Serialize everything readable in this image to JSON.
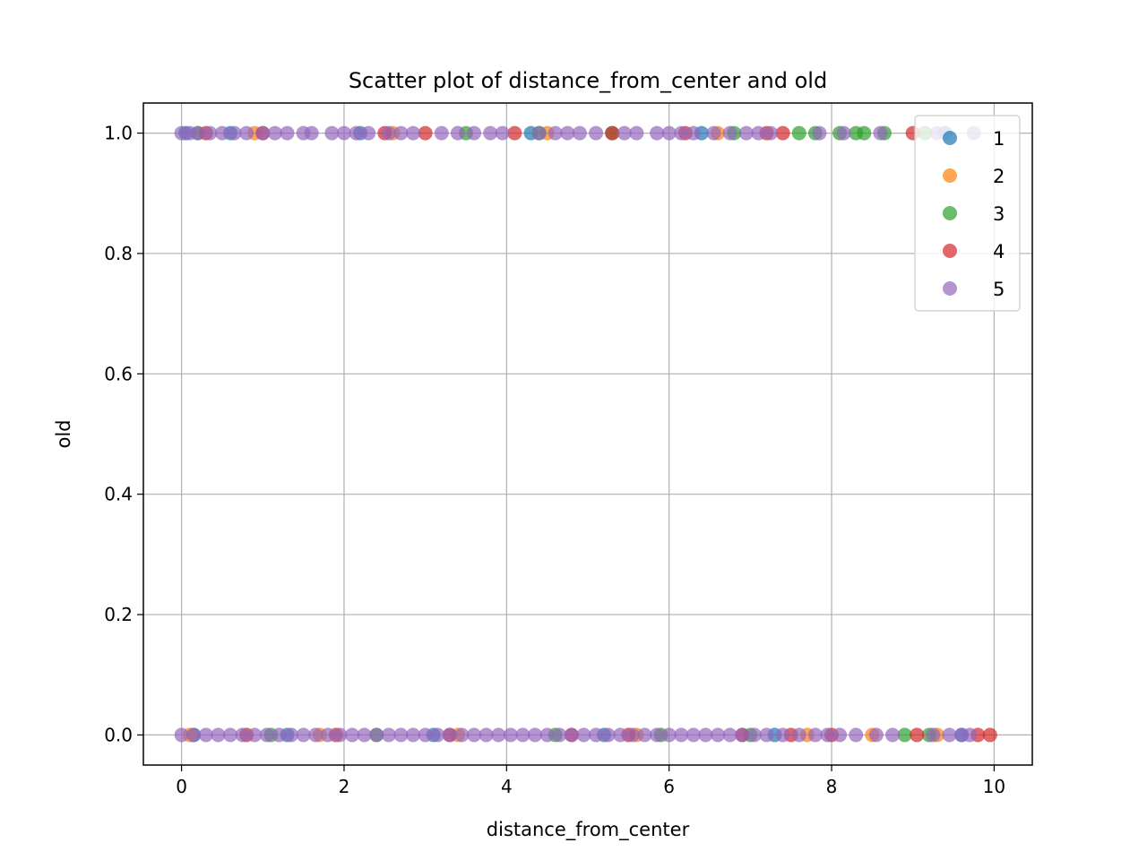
{
  "chart_data": {
    "type": "scatter",
    "title": "Scatter plot of distance_from_center and old",
    "xlabel": "distance_from_center",
    "ylabel": "old",
    "xlim": [
      -0.47,
      10.47
    ],
    "ylim": [
      -0.05,
      1.05
    ],
    "xticks": [
      0,
      2,
      4,
      6,
      8,
      10
    ],
    "xtick_labels": [
      "0",
      "2",
      "4",
      "6",
      "8",
      "10"
    ],
    "yticks": [
      0.0,
      0.2,
      0.4,
      0.6,
      0.8,
      1.0
    ],
    "ytick_labels": [
      "0.0",
      "0.2",
      "0.4",
      "0.6",
      "0.8",
      "1.0"
    ],
    "grid": true,
    "legend_position": "top-right",
    "marker_alpha": 0.7,
    "series": [
      {
        "name": "1",
        "color": "#1f77b4",
        "points": [
          [
            0.05,
            1
          ],
          [
            0.15,
            0
          ],
          [
            0.6,
            1
          ],
          [
            1.3,
            0
          ],
          [
            2.2,
            1
          ],
          [
            3.1,
            0
          ],
          [
            4.3,
            1
          ],
          [
            5.2,
            0
          ],
          [
            6.4,
            1
          ],
          [
            7.3,
            0
          ],
          [
            9.4,
            1
          ],
          [
            9.6,
            0
          ]
        ]
      },
      {
        "name": "2",
        "color": "#ff7f0e",
        "points": [
          [
            0.1,
            0
          ],
          [
            0.9,
            1
          ],
          [
            1.7,
            0
          ],
          [
            2.6,
            1
          ],
          [
            3.4,
            0
          ],
          [
            4.5,
            1
          ],
          [
            5.6,
            0
          ],
          [
            6.6,
            1
          ],
          [
            7.7,
            0
          ],
          [
            8.5,
            0
          ],
          [
            9.3,
            0
          ]
        ]
      },
      {
        "name": "3",
        "color": "#2ca02c",
        "points": [
          [
            0.2,
            1
          ],
          [
            1.1,
            0
          ],
          [
            2.4,
            0
          ],
          [
            3.5,
            1
          ],
          [
            4.4,
            1
          ],
          [
            4.6,
            0
          ],
          [
            5.3,
            1
          ],
          [
            5.9,
            0
          ],
          [
            6.8,
            1
          ],
          [
            7.0,
            0
          ],
          [
            7.6,
            1
          ],
          [
            7.8,
            1
          ],
          [
            8.1,
            1
          ],
          [
            8.3,
            1
          ],
          [
            8.4,
            1
          ],
          [
            8.65,
            1
          ],
          [
            8.9,
            0
          ],
          [
            9.15,
            1
          ],
          [
            9.2,
            0
          ]
        ]
      },
      {
        "name": "4",
        "color": "#d62728",
        "points": [
          [
            0.3,
            1
          ],
          [
            0.8,
            0
          ],
          [
            1.0,
            1
          ],
          [
            1.9,
            0
          ],
          [
            2.5,
            1
          ],
          [
            3.0,
            1
          ],
          [
            3.3,
            0
          ],
          [
            4.1,
            1
          ],
          [
            4.8,
            0
          ],
          [
            5.3,
            1
          ],
          [
            5.5,
            0
          ],
          [
            6.2,
            1
          ],
          [
            6.9,
            0
          ],
          [
            7.2,
            1
          ],
          [
            7.4,
            1
          ],
          [
            7.5,
            0
          ],
          [
            8.0,
            0
          ],
          [
            9.0,
            1
          ],
          [
            9.05,
            0
          ],
          [
            9.8,
            0
          ],
          [
            9.95,
            0
          ]
        ]
      },
      {
        "name": "5",
        "color": "#9467bd",
        "points": [
          [
            0.0,
            1
          ],
          [
            0.1,
            1
          ],
          [
            0.2,
            1
          ],
          [
            0.35,
            1
          ],
          [
            0.5,
            1
          ],
          [
            0.65,
            1
          ],
          [
            0.8,
            1
          ],
          [
            1.0,
            1
          ],
          [
            1.15,
            1
          ],
          [
            1.3,
            1
          ],
          [
            1.5,
            1
          ],
          [
            1.6,
            1
          ],
          [
            1.85,
            1
          ],
          [
            2.0,
            1
          ],
          [
            2.15,
            1
          ],
          [
            2.3,
            1
          ],
          [
            2.55,
            1
          ],
          [
            2.7,
            1
          ],
          [
            2.85,
            1
          ],
          [
            3.2,
            1
          ],
          [
            3.4,
            1
          ],
          [
            3.6,
            1
          ],
          [
            3.8,
            1
          ],
          [
            3.95,
            1
          ],
          [
            4.4,
            1
          ],
          [
            4.6,
            1
          ],
          [
            4.75,
            1
          ],
          [
            4.9,
            1
          ],
          [
            5.1,
            1
          ],
          [
            5.45,
            1
          ],
          [
            5.6,
            1
          ],
          [
            5.85,
            1
          ],
          [
            6.0,
            1
          ],
          [
            6.15,
            1
          ],
          [
            6.3,
            1
          ],
          [
            6.55,
            1
          ],
          [
            6.75,
            1
          ],
          [
            6.95,
            1
          ],
          [
            7.1,
            1
          ],
          [
            7.25,
            1
          ],
          [
            7.85,
            1
          ],
          [
            8.15,
            1
          ],
          [
            8.6,
            1
          ],
          [
            9.3,
            1
          ],
          [
            9.75,
            1
          ],
          [
            0.0,
            0
          ],
          [
            0.15,
            0
          ],
          [
            0.3,
            0
          ],
          [
            0.45,
            0
          ],
          [
            0.6,
            0
          ],
          [
            0.75,
            0
          ],
          [
            0.9,
            0
          ],
          [
            1.05,
            0
          ],
          [
            1.2,
            0
          ],
          [
            1.35,
            0
          ],
          [
            1.5,
            0
          ],
          [
            1.65,
            0
          ],
          [
            1.8,
            0
          ],
          [
            1.95,
            0
          ],
          [
            2.1,
            0
          ],
          [
            2.25,
            0
          ],
          [
            2.4,
            0
          ],
          [
            2.55,
            0
          ],
          [
            2.7,
            0
          ],
          [
            2.85,
            0
          ],
          [
            3.0,
            0
          ],
          [
            3.15,
            0
          ],
          [
            3.3,
            0
          ],
          [
            3.45,
            0
          ],
          [
            3.6,
            0
          ],
          [
            3.75,
            0
          ],
          [
            3.9,
            0
          ],
          [
            4.05,
            0
          ],
          [
            4.2,
            0
          ],
          [
            4.35,
            0
          ],
          [
            4.5,
            0
          ],
          [
            4.65,
            0
          ],
          [
            4.8,
            0
          ],
          [
            4.95,
            0
          ],
          [
            5.1,
            0
          ],
          [
            5.25,
            0
          ],
          [
            5.4,
            0
          ],
          [
            5.55,
            0
          ],
          [
            5.7,
            0
          ],
          [
            5.85,
            0
          ],
          [
            6.0,
            0
          ],
          [
            6.15,
            0
          ],
          [
            6.3,
            0
          ],
          [
            6.45,
            0
          ],
          [
            6.6,
            0
          ],
          [
            6.75,
            0
          ],
          [
            6.9,
            0
          ],
          [
            7.05,
            0
          ],
          [
            7.2,
            0
          ],
          [
            7.4,
            0
          ],
          [
            7.6,
            0
          ],
          [
            7.8,
            0
          ],
          [
            7.95,
            0
          ],
          [
            8.1,
            0
          ],
          [
            8.3,
            0
          ],
          [
            8.55,
            0
          ],
          [
            8.75,
            0
          ],
          [
            9.25,
            0
          ],
          [
            9.45,
            0
          ],
          [
            9.6,
            0
          ],
          [
            9.7,
            0
          ]
        ]
      }
    ]
  }
}
